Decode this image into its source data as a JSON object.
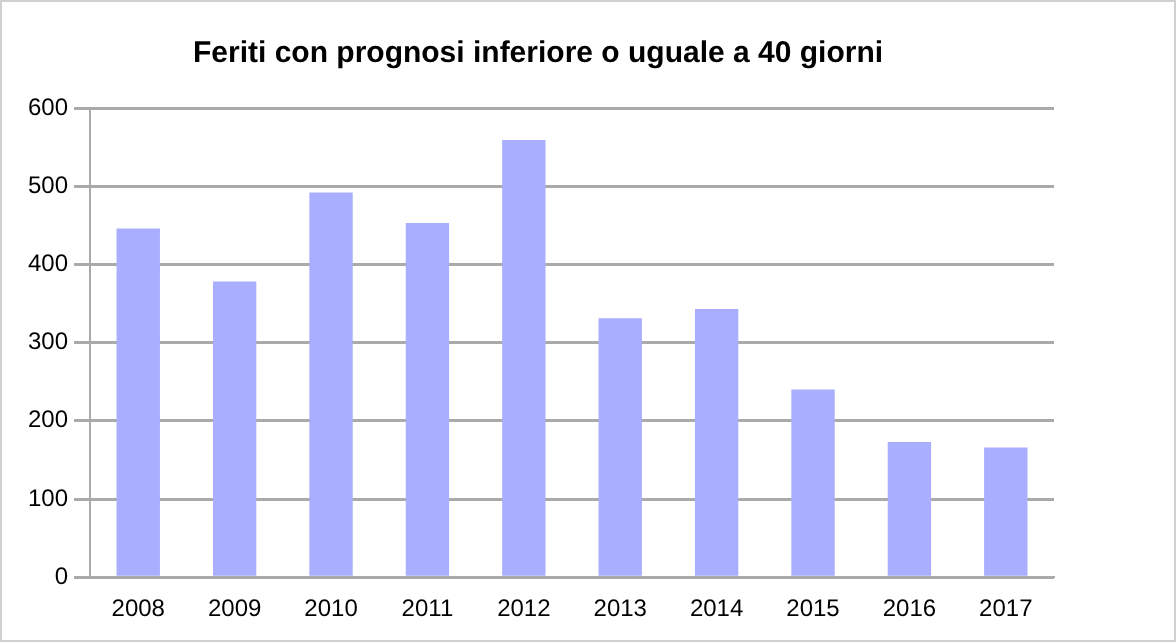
{
  "chart_data": {
    "type": "bar",
    "title": "Feriti con prognosi inferiore o uguale a 40 giorni",
    "categories": [
      "2008",
      "2009",
      "2010",
      "2011",
      "2012",
      "2013",
      "2014",
      "2015",
      "2016",
      "2017"
    ],
    "values": [
      446,
      378,
      492,
      453,
      559,
      331,
      343,
      240,
      173,
      166
    ],
    "color": "#a9aefe",
    "ylim": [
      0,
      600
    ],
    "yticks": [
      0,
      100,
      200,
      300,
      400,
      500,
      600
    ],
    "grid": "y"
  }
}
